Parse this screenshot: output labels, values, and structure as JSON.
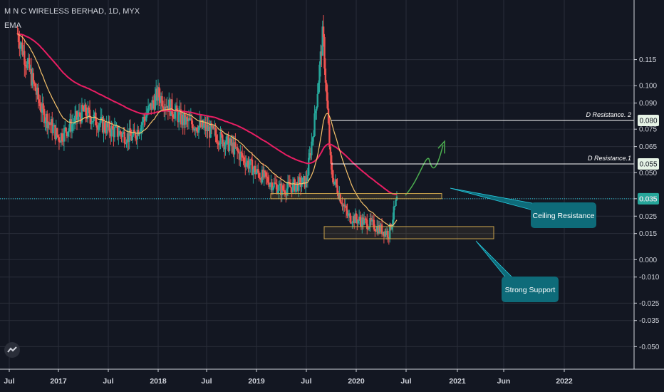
{
  "chart_data": {
    "type": "candlestick",
    "title": "M N C WIRELESS BERHAD, 1D, MYX",
    "indicator_label": "EMA",
    "x_ticks": [
      "Jul",
      "2017",
      "Jul",
      "2018",
      "Jul",
      "2019",
      "Jul",
      "2020",
      "Jul",
      "2021",
      "Jun",
      "2022"
    ],
    "y_ticks": [
      0.115,
      0.1,
      0.09,
      0.075,
      0.065,
      0.05,
      0.035,
      0.025,
      0.015,
      0.0,
      -0.01,
      -0.025,
      -0.035,
      -0.05
    ],
    "y_tick_labels": [
      "0.115",
      "0.100",
      "0.090",
      "0.075",
      "0.065",
      "0.050",
      "0.035",
      "0.025",
      "0.015",
      "0.000",
      "-0.010",
      "-0.025",
      "-0.035",
      "-0.050"
    ],
    "ylim": [
      -0.05,
      0.115
    ],
    "current_price": 0.035,
    "current_price_label": "0.035",
    "resistance_levels": [
      {
        "name": "D Resistance. 2",
        "value": 0.08,
        "value_label": "0.080"
      },
      {
        "name": "D Resistance.1",
        "value": 0.055,
        "value_label": "0.055"
      }
    ],
    "zones": [
      {
        "name": "Ceiling Resistance",
        "low": 0.035,
        "high": 0.038
      },
      {
        "name": "Strong Support",
        "low": 0.012,
        "high": 0.019
      }
    ],
    "callouts": {
      "ceiling": "Ceiling Resistance",
      "support": "Strong Support"
    },
    "approx_price_path": [
      {
        "t": "2016-08",
        "price": 0.13
      },
      {
        "t": "2016-11",
        "price": 0.085
      },
      {
        "t": "2017-01",
        "price": 0.07
      },
      {
        "t": "2017-04",
        "price": 0.085
      },
      {
        "t": "2017-07",
        "price": 0.075
      },
      {
        "t": "2017-10",
        "price": 0.07
      },
      {
        "t": "2018-01",
        "price": 0.095
      },
      {
        "t": "2018-04",
        "price": 0.08
      },
      {
        "t": "2018-07",
        "price": 0.075
      },
      {
        "t": "2018-10",
        "price": 0.065
      },
      {
        "t": "2019-01",
        "price": 0.05
      },
      {
        "t": "2019-04",
        "price": 0.04
      },
      {
        "t": "2019-07",
        "price": 0.045
      },
      {
        "t": "2019-08",
        "price": 0.08
      },
      {
        "t": "2019-09",
        "price": 0.13
      },
      {
        "t": "2019-10",
        "price": 0.05
      },
      {
        "t": "2019-12",
        "price": 0.025
      },
      {
        "t": "2020-03",
        "price": 0.02
      },
      {
        "t": "2020-05",
        "price": 0.015
      },
      {
        "t": "2020-06",
        "price": 0.035
      }
    ],
    "colors": {
      "up": "#26a69a",
      "down": "#ef5350",
      "ema_slow": "#e91e63",
      "ema_fast": "#f7c26b",
      "projection": "#4caf50",
      "price_line": "#26c6da",
      "zone_border": "#c8a14b",
      "callout_bg": "#0e6b79"
    }
  }
}
